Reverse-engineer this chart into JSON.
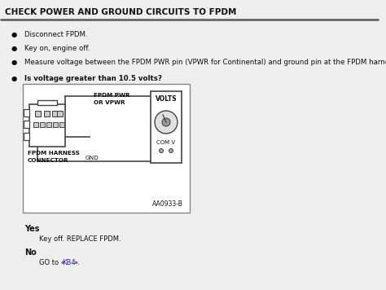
{
  "title": "CHECK POWER AND GROUND CIRCUITS TO FPDM",
  "bullet1": "Disconnect FPDM.",
  "bullet2": "Key on, engine off.",
  "bullet3": "Measure voltage between the FPDM PWR pin (VPWR for Continental) and ground pin at the FPDM harness connector.",
  "bullet4": "Is voltage greater than 10.5 volts?",
  "yes_label": "Yes",
  "yes_text": "Key off. REPLACE FPDM.",
  "no_label": "No",
  "no_text_prefix": "GO to «",
  "no_text_link": "KB4",
  "no_text_suffix": "».",
  "diagram_label": "AA0933-B",
  "connector_label1": "FPDM HARNESS",
  "connector_label2": "CONNECTOR",
  "fpdm_pwr_label1": "FPDM PWR",
  "fpdm_pwr_label2": "OR VPWR",
  "gnd_label": "GND",
  "volts_label": "VOLTS",
  "com_v_label": "COM V",
  "bg_color": "#efefef",
  "box_bg": "#ffffff",
  "link_color": "#2222cc",
  "text_color": "#111111",
  "line_color": "#444444",
  "rule_color": "#666666"
}
